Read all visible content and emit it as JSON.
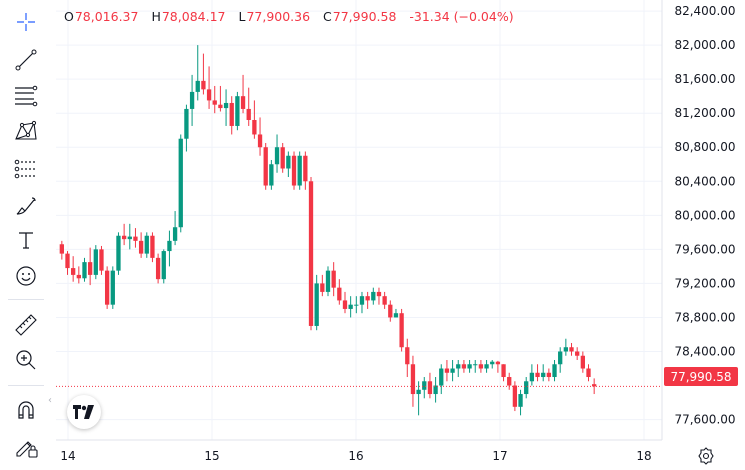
{
  "legend": {
    "open_label": "O",
    "open": "78,016.37",
    "high_label": "H",
    "high": "78,084.17",
    "low_label": "L",
    "low": "77,900.36",
    "close_label": "C",
    "close": "77,990.58",
    "change": "-31.34 (−0.04%)"
  },
  "current_price": "77,990.58",
  "colors": {
    "up": "#089981",
    "down": "#f23645",
    "grid": "#f0f3fa",
    "axis_text": "#131722"
  },
  "toolbar": {
    "tools": [
      "crosshair-icon",
      "trend-line-icon",
      "fib-retracement-icon",
      "xabcd-pattern-icon",
      "long-position-icon",
      "brush-icon",
      "text-icon",
      "emoji-icon",
      "ruler-icon",
      "zoom-in-icon",
      "magnet-icon",
      "lock-drawing-icon"
    ]
  },
  "chart_data": {
    "type": "candlestick",
    "y_ticks": [
      "82,400.00",
      "82,000.00",
      "81,600.00",
      "81,200.00",
      "80,800.00",
      "80,400.00",
      "80,000.00",
      "79,600.00",
      "79,200.00",
      "78,800.00",
      "78,400.00",
      "77,600.00"
    ],
    "y_tick_values": [
      82400,
      82000,
      81600,
      81200,
      80800,
      80400,
      80000,
      79600,
      79200,
      78800,
      78400,
      77600
    ],
    "x_ticks": [
      "14",
      "15",
      "16",
      "17",
      "18"
    ],
    "ylim": [
      77360,
      82530
    ],
    "current_price": 77990.58,
    "candles": [
      [
        79660,
        79700,
        79480,
        79550
      ],
      [
        79550,
        79580,
        79300,
        79380
      ],
      [
        79380,
        79520,
        79220,
        79300
      ],
      [
        79300,
        79400,
        79200,
        79260
      ],
      [
        79260,
        79500,
        79220,
        79450
      ],
      [
        79450,
        79620,
        79180,
        79300
      ],
      [
        79300,
        79650,
        79250,
        79600
      ],
      [
        79600,
        79640,
        79300,
        79350
      ],
      [
        79350,
        79400,
        78900,
        78950
      ],
      [
        78950,
        79400,
        78900,
        79350
      ],
      [
        79350,
        79800,
        79300,
        79760
      ],
      [
        79760,
        79900,
        79650,
        79720
      ],
      [
        79720,
        79900,
        79600,
        79750
      ],
      [
        79750,
        79850,
        79620,
        79700
      ],
      [
        79700,
        79800,
        79500,
        79550
      ],
      [
        79550,
        79800,
        79500,
        79760
      ],
      [
        79760,
        79800,
        79450,
        79500
      ],
      [
        79500,
        79550,
        79200,
        79250
      ],
      [
        79250,
        79600,
        79200,
        79580
      ],
      [
        79580,
        79820,
        79400,
        79700
      ],
      [
        79700,
        80050,
        79650,
        79860
      ],
      [
        79860,
        80950,
        79800,
        80900
      ],
      [
        80900,
        81300,
        80750,
        81250
      ],
      [
        81250,
        81650,
        81050,
        81450
      ],
      [
        81450,
        82000,
        81350,
        81580
      ],
      [
        81580,
        81900,
        81420,
        81480
      ],
      [
        81480,
        81750,
        81250,
        81350
      ],
      [
        81350,
        81520,
        81200,
        81300
      ],
      [
        81300,
        81520,
        81220,
        81260
      ],
      [
        81260,
        81480,
        81050,
        81320
      ],
      [
        81320,
        81400,
        80950,
        81050
      ],
      [
        81050,
        81450,
        81000,
        81400
      ],
      [
        81400,
        81650,
        81200,
        81250
      ],
      [
        81250,
        81500,
        81050,
        81120
      ],
      [
        81120,
        81350,
        80900,
        80950
      ],
      [
        80950,
        81150,
        80700,
        80800
      ],
      [
        80800,
        80850,
        80300,
        80350
      ],
      [
        80350,
        80650,
        80300,
        80600
      ],
      [
        80600,
        80950,
        80500,
        80800
      ],
      [
        80800,
        80850,
        80500,
        80550
      ],
      [
        80550,
        80750,
        80450,
        80700
      ],
      [
        80700,
        80750,
        80300,
        80350
      ],
      [
        80350,
        80750,
        80300,
        80700
      ],
      [
        80700,
        80750,
        80300,
        80400
      ],
      [
        80400,
        80450,
        78650,
        78700
      ],
      [
        78700,
        79300,
        78650,
        79200
      ],
      [
        79200,
        79300,
        79050,
        79100
      ],
      [
        79100,
        79400,
        79050,
        79350
      ],
      [
        79350,
        79450,
        79050,
        79150
      ],
      [
        79150,
        79250,
        78950,
        79000
      ],
      [
        79000,
        79100,
        78850,
        78900
      ],
      [
        78900,
        79050,
        78800,
        78950
      ],
      [
        78950,
        79050,
        78850,
        78950
      ],
      [
        78950,
        79100,
        78850,
        79050
      ],
      [
        79050,
        79100,
        78900,
        79000
      ],
      [
        79000,
        79150,
        78950,
        79100
      ],
      [
        79100,
        79150,
        78950,
        79050
      ],
      [
        79050,
        79100,
        78900,
        78950
      ],
      [
        78950,
        79000,
        78750,
        78800
      ],
      [
        78800,
        78900,
        78800,
        78850
      ],
      [
        78850,
        78900,
        78400,
        78450
      ],
      [
        78450,
        78550,
        78100,
        78250
      ],
      [
        78250,
        78350,
        77750,
        77900
      ],
      [
        77900,
        78050,
        77650,
        77950
      ],
      [
        77950,
        78100,
        77850,
        78050
      ],
      [
        78050,
        78150,
        77850,
        77900
      ],
      [
        77900,
        78100,
        77800,
        78000
      ],
      [
        78000,
        78250,
        77900,
        78200
      ],
      [
        78200,
        78300,
        78050,
        78150
      ],
      [
        78150,
        78300,
        78050,
        78200
      ],
      [
        78200,
        78300,
        78100,
        78250
      ],
      [
        78250,
        78300,
        78150,
        78200
      ],
      [
        78200,
        78300,
        78150,
        78250
      ],
      [
        78250,
        78300,
        78150,
        78250
      ],
      [
        78250,
        78300,
        78150,
        78200
      ],
      [
        78200,
        78300,
        78150,
        78250
      ],
      [
        78250,
        78300,
        78200,
        78280
      ],
      [
        78280,
        78290,
        78150,
        78250
      ],
      [
        78250,
        78250,
        78050,
        78100
      ],
      [
        78100,
        78150,
        77950,
        78000
      ],
      [
        78000,
        78050,
        77700,
        77750
      ],
      [
        77750,
        77950,
        77650,
        77900
      ],
      [
        77900,
        78100,
        77850,
        78050
      ],
      [
        78050,
        78250,
        78000,
        78150
      ],
      [
        78150,
        78250,
        78050,
        78100
      ],
      [
        78100,
        78250,
        78050,
        78150
      ],
      [
        78150,
        78200,
        78050,
        78100
      ],
      [
        78100,
        78300,
        78050,
        78250
      ],
      [
        78250,
        78450,
        78150,
        78400
      ],
      [
        78400,
        78550,
        78350,
        78450
      ],
      [
        78450,
        78500,
        78350,
        78400
      ],
      [
        78400,
        78450,
        78300,
        78350
      ],
      [
        78350,
        78400,
        78150,
        78200
      ],
      [
        78200,
        78250,
        78050,
        78100
      ],
      [
        78016,
        78084,
        77900,
        77990
      ]
    ]
  }
}
